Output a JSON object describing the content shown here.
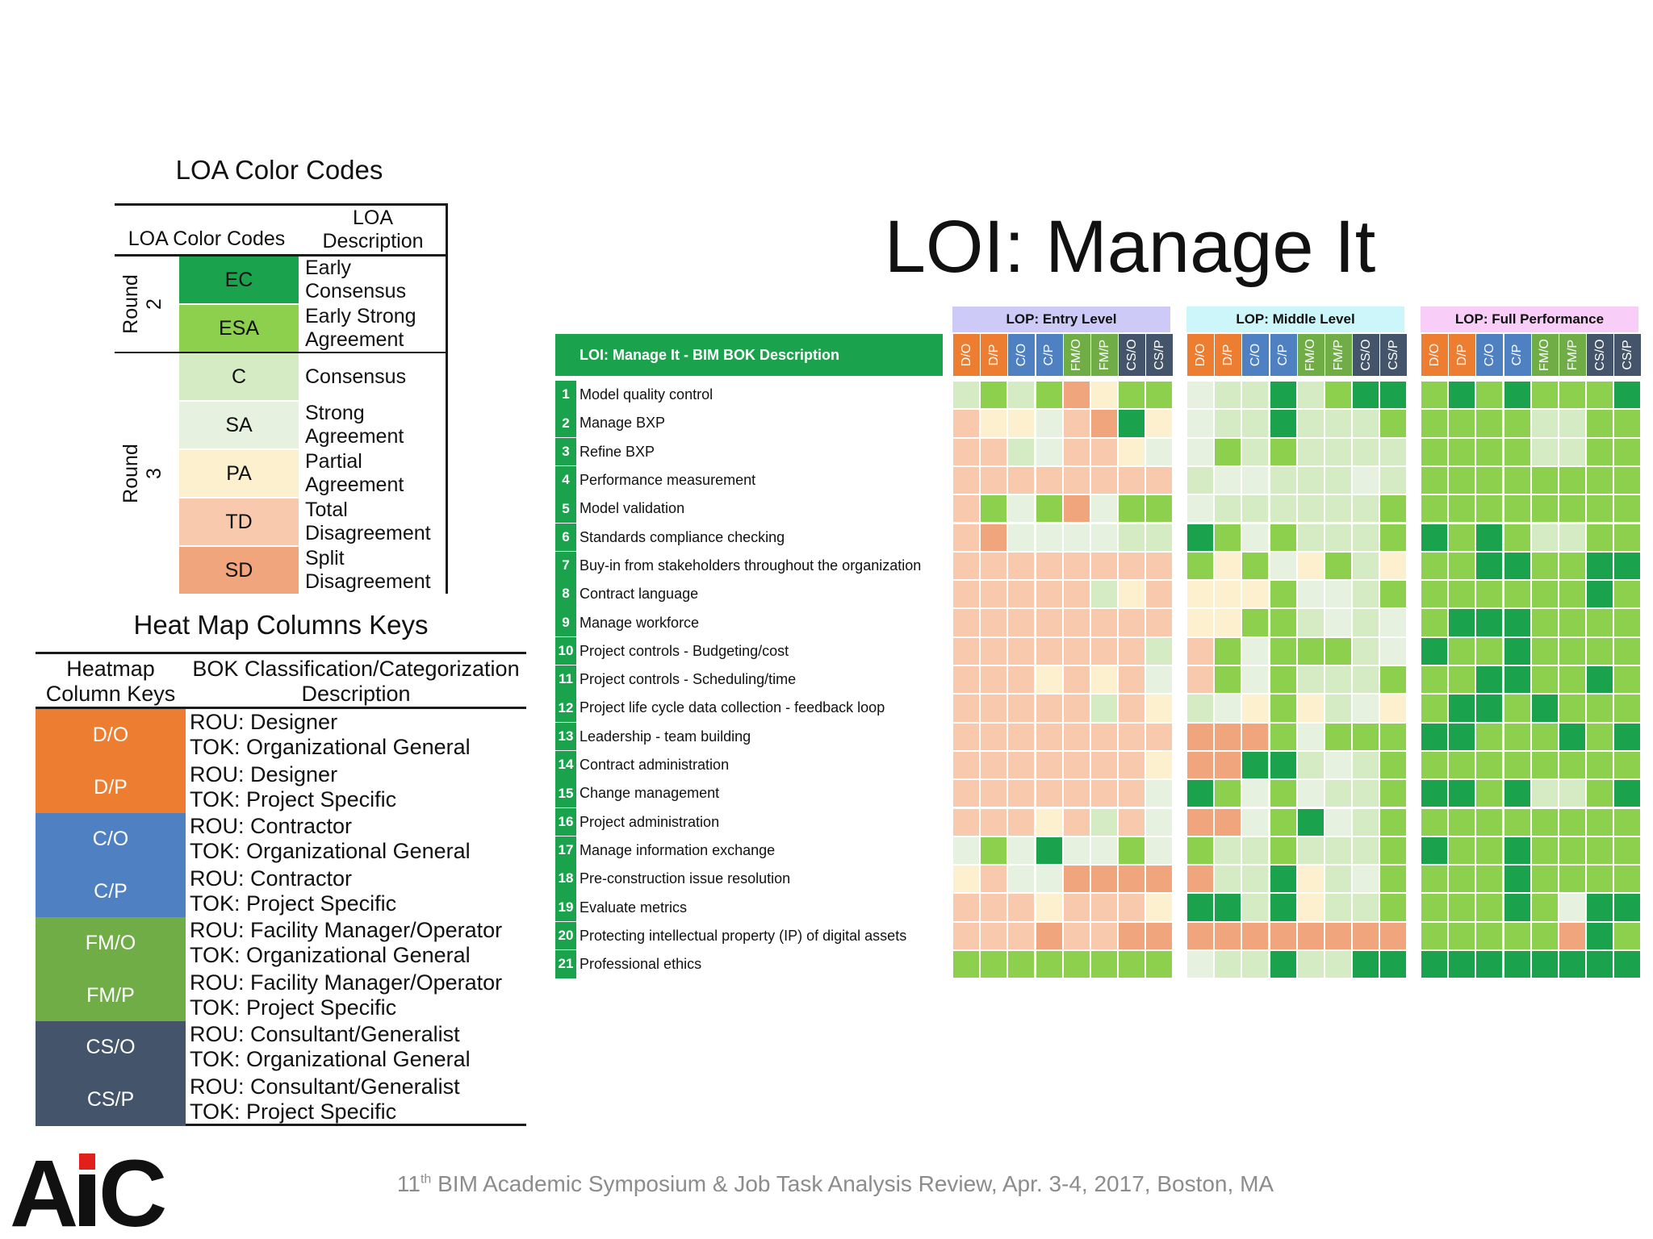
{
  "loa": {
    "title": "LOA Color Codes",
    "header_codes": "LOA Color Codes",
    "header_desc": "LOA\nDescription",
    "round2_label": "Round\n2",
    "round3_label": "Round\n3",
    "rows": [
      {
        "code": "EC",
        "desc": "Early\nConsensus",
        "color": "#1ba24d"
      },
      {
        "code": "ESA",
        "desc": "Early Strong\nAgreement",
        "color": "#8cd04e"
      },
      {
        "code": "C",
        "desc": "Consensus",
        "color": "#d4ebc4"
      },
      {
        "code": "SA",
        "desc": "Strong\nAgreement",
        "color": "#e6f1df"
      },
      {
        "code": "PA",
        "desc": "Partial\nAgreement",
        "color": "#fcf0cf"
      },
      {
        "code": "TD",
        "desc": "Total\nDisagreement",
        "color": "#f8c9ac"
      },
      {
        "code": "SD",
        "desc": "Split\nDisagreement",
        "color": "#f1a57c"
      }
    ]
  },
  "keys": {
    "title": "Heat Map Columns Keys",
    "header_keys": "Heatmap\nColumn Keys",
    "header_desc": "BOK Classification/Categorization\nDescription",
    "rows": [
      {
        "key": "D/O",
        "rou": "ROU: Designer",
        "tok": "TOK: Organizational General",
        "color": "#ed7d31"
      },
      {
        "key": "D/P",
        "rou": "ROU: Designer",
        "tok": "TOK: Project Specific",
        "color": "#ed7d31"
      },
      {
        "key": "C/O",
        "rou": "ROU: Contractor",
        "tok": "TOK: Organizational General",
        "color": "#4f80c1"
      },
      {
        "key": "C/P",
        "rou": "ROU: Contractor",
        "tok": "TOK: Project Specific",
        "color": "#4f80c1"
      },
      {
        "key": "FM/O",
        "rou": "ROU: Facility Manager/Operator",
        "tok": "TOK: Organizational General",
        "color": "#70ad47"
      },
      {
        "key": "FM/P",
        "rou": "ROU: Facility Manager/Operator",
        "tok": "TOK: Project Specific",
        "color": "#70ad47"
      },
      {
        "key": "CS/O",
        "rou": "ROU: Consultant/Generalist",
        "tok": "TOK: Organizational General",
        "color": "#44546a"
      },
      {
        "key": "CS/P",
        "rou": "ROU: Consultant/Generalist",
        "tok": "TOK: Project Specific",
        "color": "#44546a"
      }
    ]
  },
  "main_title": "LOI: Manage It",
  "heatmap": {
    "description_header": "LOI: Manage It - BIM BOK Description",
    "levels": [
      "LOP: Entry Level",
      "LOP: Middle Level",
      "LOP: Full Performance"
    ],
    "columns": [
      "D/O",
      "D/P",
      "C/O",
      "C/P",
      "FM/O",
      "FM/P",
      "CS/O",
      "CS/P"
    ],
    "rows": [
      {
        "n": "1",
        "label": "Model quality control"
      },
      {
        "n": "2",
        "label": "Manage BXP"
      },
      {
        "n": "3",
        "label": "Refine BXP"
      },
      {
        "n": "4",
        "label": "Performance measurement"
      },
      {
        "n": "5",
        "label": "Model validation"
      },
      {
        "n": "6",
        "label": "Standards compliance checking"
      },
      {
        "n": "7",
        "label": "Buy-in from stakeholders throughout the organization"
      },
      {
        "n": "8",
        "label": "Contract language"
      },
      {
        "n": "9",
        "label": "Manage workforce"
      },
      {
        "n": "10",
        "label": "Project controls - Budgeting/cost"
      },
      {
        "n": "11",
        "label": "Project controls - Scheduling/time"
      },
      {
        "n": "12",
        "label": "Project life cycle data collection - feedback loop"
      },
      {
        "n": "13",
        "label": "Leadership - team building"
      },
      {
        "n": "14",
        "label": "Contract administration"
      },
      {
        "n": "15",
        "label": "Change management"
      },
      {
        "n": "16",
        "label": "Project administration"
      },
      {
        "n": "17",
        "label": "Manage information exchange"
      },
      {
        "n": "18",
        "label": "Pre-construction issue resolution"
      },
      {
        "n": "19",
        "label": "Evaluate metrics"
      },
      {
        "n": "20",
        "label": "Protecting intellectual property (IP) of digital assets"
      },
      {
        "n": "21",
        "label": "Professional ethics"
      }
    ],
    "values": [
      [
        "C",
        "ESA",
        "C",
        "ESA",
        "SD",
        "PA",
        "ESA",
        "ESA",
        "SA",
        "C",
        "C",
        "EC",
        "C",
        "ESA",
        "EC",
        "EC",
        "ESA",
        "EC",
        "ESA",
        "EC",
        "ESA",
        "ESA",
        "ESA",
        "EC"
      ],
      [
        "TD",
        "PA",
        "PA",
        "SA",
        "TD",
        "SD",
        "EC",
        "PA",
        "SA",
        "C",
        "C",
        "EC",
        "C",
        "C",
        "C",
        "ESA",
        "ESA",
        "ESA",
        "ESA",
        "ESA",
        "C",
        "C",
        "ESA",
        "ESA"
      ],
      [
        "TD",
        "TD",
        "C",
        "SA",
        "TD",
        "TD",
        "PA",
        "SA",
        "SA",
        "ESA",
        "C",
        "ESA",
        "C",
        "C",
        "C",
        "C",
        "ESA",
        "ESA",
        "ESA",
        "ESA",
        "C",
        "C",
        "ESA",
        "ESA"
      ],
      [
        "TD",
        "TD",
        "TD",
        "TD",
        "TD",
        "TD",
        "TD",
        "TD",
        "C",
        "SA",
        "SA",
        "C",
        "C",
        "C",
        "SA",
        "C",
        "ESA",
        "ESA",
        "ESA",
        "ESA",
        "ESA",
        "ESA",
        "ESA",
        "ESA"
      ],
      [
        "TD",
        "ESA",
        "SA",
        "ESA",
        "SD",
        "SA",
        "ESA",
        "ESA",
        "SA",
        "C",
        "C",
        "C",
        "C",
        "C",
        "C",
        "ESA",
        "ESA",
        "ESA",
        "ESA",
        "ESA",
        "ESA",
        "ESA",
        "ESA",
        "ESA"
      ],
      [
        "TD",
        "SD",
        "SA",
        "SA",
        "SA",
        "SA",
        "C",
        "C",
        "EC",
        "ESA",
        "SA",
        "ESA",
        "C",
        "C",
        "C",
        "ESA",
        "EC",
        "ESA",
        "EC",
        "ESA",
        "C",
        "C",
        "ESA",
        "ESA"
      ],
      [
        "TD",
        "TD",
        "TD",
        "TD",
        "TD",
        "TD",
        "TD",
        "TD",
        "ESA",
        "PA",
        "ESA",
        "SA",
        "PA",
        "ESA",
        "C",
        "PA",
        "ESA",
        "ESA",
        "EC",
        "EC",
        "ESA",
        "ESA",
        "EC",
        "EC"
      ],
      [
        "TD",
        "TD",
        "TD",
        "TD",
        "TD",
        "C",
        "PA",
        "TD",
        "PA",
        "PA",
        "PA",
        "ESA",
        "SA",
        "SA",
        "C",
        "ESA",
        "ESA",
        "ESA",
        "ESA",
        "ESA",
        "ESA",
        "ESA",
        "EC",
        "ESA"
      ],
      [
        "TD",
        "TD",
        "TD",
        "TD",
        "TD",
        "TD",
        "TD",
        "TD",
        "PA",
        "PA",
        "ESA",
        "ESA",
        "C",
        "SA",
        "C",
        "SA",
        "ESA",
        "EC",
        "EC",
        "EC",
        "ESA",
        "ESA",
        "ESA",
        "ESA"
      ],
      [
        "TD",
        "TD",
        "TD",
        "TD",
        "TD",
        "TD",
        "TD",
        "C",
        "TD",
        "ESA",
        "SA",
        "ESA",
        "ESA",
        "ESA",
        "C",
        "SA",
        "EC",
        "ESA",
        "ESA",
        "EC",
        "ESA",
        "ESA",
        "ESA",
        "ESA"
      ],
      [
        "TD",
        "TD",
        "TD",
        "PA",
        "TD",
        "PA",
        "TD",
        "SA",
        "TD",
        "ESA",
        "SA",
        "ESA",
        "C",
        "C",
        "C",
        "ESA",
        "ESA",
        "ESA",
        "EC",
        "EC",
        "ESA",
        "ESA",
        "EC",
        "ESA"
      ],
      [
        "TD",
        "TD",
        "TD",
        "TD",
        "TD",
        "C",
        "TD",
        "PA",
        "C",
        "SA",
        "PA",
        "ESA",
        "PA",
        "C",
        "SA",
        "PA",
        "ESA",
        "EC",
        "EC",
        "ESA",
        "EC",
        "ESA",
        "ESA",
        "ESA"
      ],
      [
        "TD",
        "TD",
        "TD",
        "TD",
        "TD",
        "TD",
        "TD",
        "TD",
        "SD",
        "SD",
        "SD",
        "ESA",
        "SA",
        "ESA",
        "ESA",
        "ESA",
        "EC",
        "EC",
        "ESA",
        "ESA",
        "ESA",
        "EC",
        "ESA",
        "EC"
      ],
      [
        "TD",
        "TD",
        "TD",
        "TD",
        "TD",
        "TD",
        "TD",
        "PA",
        "SD",
        "SD",
        "EC",
        "EC",
        "C",
        "SA",
        "C",
        "ESA",
        "ESA",
        "ESA",
        "ESA",
        "ESA",
        "ESA",
        "ESA",
        "ESA",
        "ESA"
      ],
      [
        "TD",
        "TD",
        "TD",
        "TD",
        "TD",
        "TD",
        "TD",
        "SA",
        "EC",
        "ESA",
        "SA",
        "ESA",
        "SA",
        "C",
        "C",
        "ESA",
        "EC",
        "EC",
        "ESA",
        "EC",
        "C",
        "C",
        "ESA",
        "EC"
      ],
      [
        "TD",
        "TD",
        "TD",
        "PA",
        "TD",
        "C",
        "TD",
        "SA",
        "SD",
        "SD",
        "SA",
        "ESA",
        "EC",
        "SA",
        "C",
        "ESA",
        "ESA",
        "ESA",
        "ESA",
        "ESA",
        "ESA",
        "ESA",
        "ESA",
        "ESA"
      ],
      [
        "SA",
        "ESA",
        "SA",
        "EC",
        "SA",
        "SA",
        "ESA",
        "SA",
        "ESA",
        "C",
        "C",
        "ESA",
        "C",
        "C",
        "C",
        "ESA",
        "EC",
        "ESA",
        "ESA",
        "EC",
        "ESA",
        "ESA",
        "ESA",
        "ESA"
      ],
      [
        "PA",
        "TD",
        "SA",
        "SA",
        "SD",
        "SD",
        "SD",
        "SD",
        "SD",
        "C",
        "C",
        "EC",
        "PA",
        "C",
        "SA",
        "ESA",
        "ESA",
        "ESA",
        "ESA",
        "EC",
        "ESA",
        "ESA",
        "ESA",
        "ESA"
      ],
      [
        "TD",
        "TD",
        "TD",
        "PA",
        "TD",
        "TD",
        "TD",
        "PA",
        "EC",
        "EC",
        "C",
        "EC",
        "PA",
        "C",
        "C",
        "ESA",
        "ESA",
        "ESA",
        "ESA",
        "EC",
        "ESA",
        "SA",
        "EC",
        "EC"
      ],
      [
        "TD",
        "TD",
        "TD",
        "SD",
        "TD",
        "TD",
        "SD",
        "SD",
        "SD",
        "SD",
        "SD",
        "SD",
        "SD",
        "SD",
        "SD",
        "SD",
        "ESA",
        "ESA",
        "ESA",
        "ESA",
        "ESA",
        "SD",
        "EC",
        "ESA"
      ],
      [
        "ESA",
        "ESA",
        "ESA",
        "ESA",
        "ESA",
        "ESA",
        "ESA",
        "ESA",
        "SA",
        "C",
        "C",
        "EC",
        "C",
        "C",
        "EC",
        "EC",
        "EC",
        "EC",
        "EC",
        "EC",
        "EC",
        "EC",
        "EC",
        "EC"
      ]
    ]
  },
  "footer": {
    "pre": "11",
    "sup": "th",
    "post": " BIM Academic Symposium & Job Task Analysis Review, Apr. 3-4, 2017, Boston, MA"
  },
  "logo": {
    "text": "AiC",
    "color": "#111111",
    "accent": "#e2201b"
  }
}
